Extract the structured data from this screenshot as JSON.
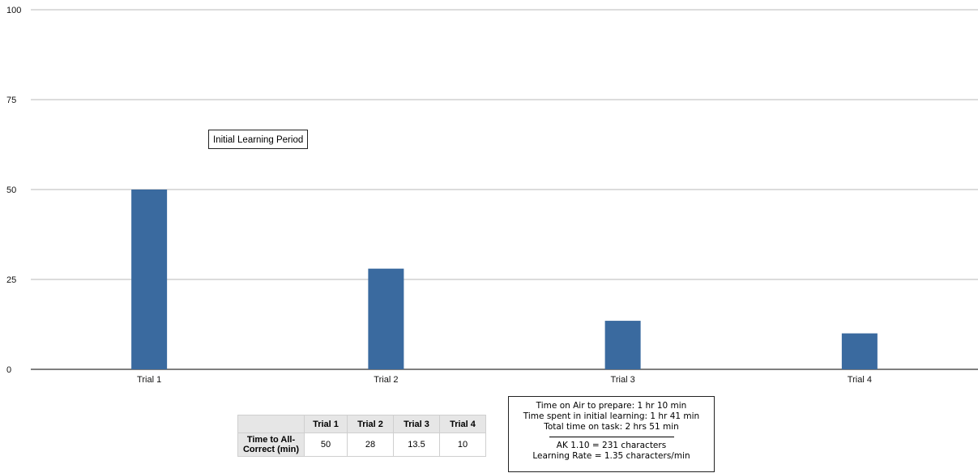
{
  "chart_data": {
    "type": "bar",
    "categories": [
      "Trial 1",
      "Trial 2",
      "Trial 3",
      "Trial 4"
    ],
    "values": [
      50,
      28,
      13.5,
      10
    ],
    "title": "",
    "xlabel": "",
    "ylabel": "",
    "ylim": [
      0,
      100
    ],
    "yticks": [
      "0",
      "25",
      "50",
      "75",
      "100"
    ],
    "grid": true,
    "bar_color": "#3a6a9f",
    "grid_color": "#b8b8b8",
    "annotation": "Initial Learning Period"
  },
  "table": {
    "headers": [
      "Trial 1",
      "Trial 2",
      "Trial 3",
      "Trial 4"
    ],
    "row_label": "Time to All-Correct (min)",
    "values": [
      "50",
      "28",
      "13.5",
      "10"
    ]
  },
  "info": {
    "line1": "Time on Air to prepare: 1 hr 10 min",
    "line2": "Time spent in initial learning: 1 hr 41 min",
    "line3": "Total time on task: 2 hrs 51 min",
    "line4": "AK 1.10 = 231 characters",
    "line5": "Learning Rate = 1.35 characters/min"
  }
}
